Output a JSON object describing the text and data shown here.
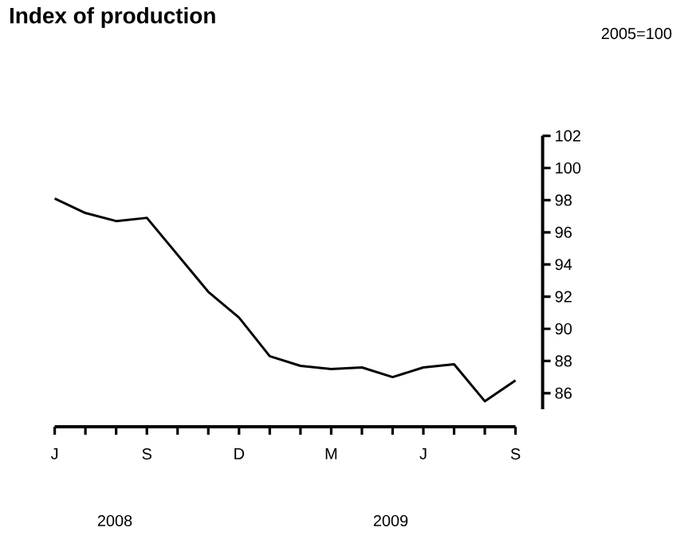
{
  "chart_data": {
    "type": "line",
    "title": "Index of production",
    "subtitle": "2005=100",
    "categories": [
      "J",
      null,
      null,
      "S",
      null,
      null,
      "D",
      null,
      null,
      "M",
      null,
      null,
      "J",
      null,
      null,
      "S"
    ],
    "values": [
      98.1,
      97.2,
      96.7,
      96.9,
      94.6,
      92.3,
      90.7,
      88.3,
      87.7,
      87.5,
      87.6,
      87.0,
      87.6,
      87.8,
      85.5,
      86.8
    ],
    "color": "#000000",
    "ylim": [
      85,
      102
    ],
    "yticks": [
      86,
      88,
      90,
      92,
      94,
      96,
      98,
      100,
      102
    ],
    "annotations": [
      "2008",
      "2009"
    ]
  }
}
